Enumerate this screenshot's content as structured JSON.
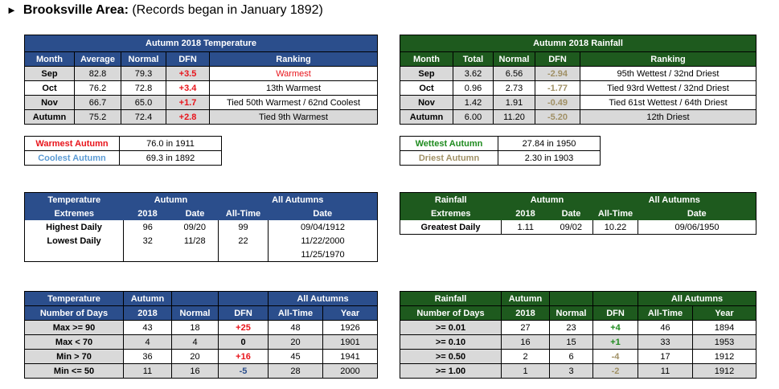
{
  "header": {
    "area": "Brooksville Area:",
    "note": "(Records began in January 1892)"
  },
  "colors": {
    "blue_header": "#2b4e8c",
    "green_header": "#1e5a1e",
    "positive_dfn": "#e8141b",
    "negative_dfn_green": "#a09065",
    "wettest": "#1e8b1e",
    "coolest": "#5b9bd5"
  },
  "temp": {
    "title": "Autumn 2018 Temperature",
    "cols": [
      "Month",
      "Average",
      "Normal",
      "DFN",
      "Ranking"
    ],
    "rows": [
      {
        "month": "Sep",
        "avg": "82.8",
        "normal": "79.3",
        "dfn": "+3.5",
        "rank": "Warmest"
      },
      {
        "month": "Oct",
        "avg": "76.2",
        "normal": "72.8",
        "dfn": "+3.4",
        "rank": "13th Warmest"
      },
      {
        "month": "Nov",
        "avg": "66.7",
        "normal": "65.0",
        "dfn": "+1.7",
        "rank": "Tied 50th Warmest / 62nd Coolest"
      },
      {
        "month": "Autumn",
        "avg": "75.2",
        "normal": "72.4",
        "dfn": "+2.8",
        "rank": "Tied 9th Warmest"
      }
    ]
  },
  "rain": {
    "title": "Autumn 2018 Rainfall",
    "cols": [
      "Month",
      "Total",
      "Normal",
      "DFN",
      "Ranking"
    ],
    "rows": [
      {
        "month": "Sep",
        "total": "3.62",
        "normal": "6.56",
        "dfn": "-2.94",
        "rank": "95th Wettest / 32nd Driest"
      },
      {
        "month": "Oct",
        "total": "0.96",
        "normal": "2.73",
        "dfn": "-1.77",
        "rank": "Tied 93rd Wettest / 32nd Driest"
      },
      {
        "month": "Nov",
        "total": "1.42",
        "normal": "1.91",
        "dfn": "-0.49",
        "rank": "Tied 61st Wettest / 64th Driest"
      },
      {
        "month": "Autumn",
        "total": "6.00",
        "normal": "11.20",
        "dfn": "-5.20",
        "rank": "12th Driest"
      }
    ]
  },
  "temp_records": [
    {
      "label": "Warmest Autumn",
      "value": "76.0 in 1911"
    },
    {
      "label": "Coolest Autumn",
      "value": "69.3 in 1892"
    }
  ],
  "rain_records": [
    {
      "label": "Wettest Autumn",
      "value": "27.84 in 1950"
    },
    {
      "label": "Driest Autumn",
      "value": "2.30 in 1903"
    }
  ],
  "temp_extremes": {
    "h1": "Temperature",
    "h2": "Extremes",
    "autumn": "Autumn",
    "all": "All Autumns",
    "sub": [
      "2018",
      "Date",
      "All-Time",
      "Date"
    ],
    "rows": [
      {
        "label": "Highest Daily",
        "v2018": "96",
        "date": "09/20",
        "alltime": "99",
        "adate": "09/04/1912"
      },
      {
        "label": "Lowest Daily",
        "v2018": "32",
        "date": "11/28",
        "alltime": "22",
        "adate": "11/22/2000"
      },
      {
        "label": "",
        "v2018": "",
        "date": "",
        "alltime": "",
        "adate": "11/25/1970"
      }
    ]
  },
  "rain_extremes": {
    "h1": "Rainfall",
    "h2": "Extremes",
    "autumn": "Autumn",
    "all": "All Autumns",
    "sub": [
      "2018",
      "Date",
      "All-Time",
      "Date"
    ],
    "rows": [
      {
        "label": "Greatest Daily",
        "v2018": "1.11",
        "date": "09/02",
        "alltime": "10.22",
        "adate": "09/06/1950"
      }
    ]
  },
  "temp_days": {
    "h1": "Temperature",
    "h2": "Number of Days",
    "autumn": "Autumn",
    "all": "All Autumns",
    "sub": [
      "2018",
      "Normal",
      "DFN",
      "All-Time",
      "Year"
    ],
    "rows": [
      {
        "label": "Max >= 90",
        "v": "43",
        "normal": "18",
        "dfn": "+25",
        "alltime": "48",
        "year": "1926"
      },
      {
        "label": "Max < 70",
        "v": "4",
        "normal": "4",
        "dfn": "0",
        "alltime": "20",
        "year": "1901"
      },
      {
        "label": "Min > 70",
        "v": "36",
        "normal": "20",
        "dfn": "+16",
        "alltime": "45",
        "year": "1941"
      },
      {
        "label": "Min <= 50",
        "v": "11",
        "normal": "16",
        "dfn": "-5",
        "alltime": "28",
        "year": "2000"
      }
    ]
  },
  "rain_days": {
    "h1": "Rainfall",
    "h2": "Number of Days",
    "autumn": "Autumn",
    "all": "All Autumns",
    "sub": [
      "2018",
      "Normal",
      "DFN",
      "All-Time",
      "Year"
    ],
    "rows": [
      {
        "label": ">= 0.01",
        "v": "27",
        "normal": "23",
        "dfn": "+4",
        "alltime": "46",
        "year": "1894"
      },
      {
        "label": ">= 0.10",
        "v": "16",
        "normal": "15",
        "dfn": "+1",
        "alltime": "33",
        "year": "1953"
      },
      {
        "label": ">= 0.50",
        "v": "2",
        "normal": "6",
        "dfn": "-4",
        "alltime": "17",
        "year": "1912"
      },
      {
        "label": ">= 1.00",
        "v": "1",
        "normal": "3",
        "dfn": "-2",
        "alltime": "11",
        "year": "1912"
      }
    ]
  }
}
